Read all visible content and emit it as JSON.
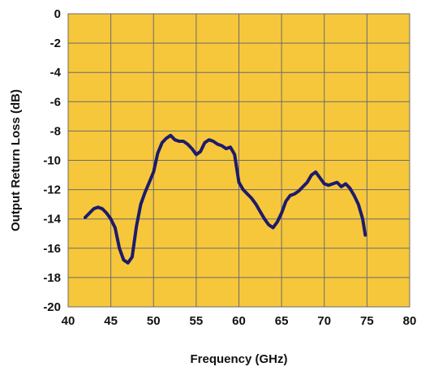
{
  "chart_data": {
    "type": "line",
    "xlabel": "Frequency (GHz)",
    "ylabel": "Output Return Loss (dB)",
    "xlim": [
      40,
      80
    ],
    "ylim": [
      -20,
      0
    ],
    "xticks": [
      "40",
      "45",
      "50",
      "55",
      "60",
      "65",
      "70",
      "75",
      "80"
    ],
    "yticks": [
      "0",
      "-2",
      "-4",
      "-6",
      "-8",
      "-10",
      "-12",
      "-14",
      "-16",
      "-18",
      "-20"
    ],
    "grid": true,
    "legend": "none",
    "colors": {
      "plot_background": "#F6C73B",
      "line": "#1E1B6B",
      "grid": "#6b6b6b"
    },
    "series": [
      {
        "x": [
          42,
          42.5,
          43,
          43.5,
          44,
          44.5,
          45,
          45.5,
          46,
          46.5,
          47,
          47.5,
          48,
          48.5,
          49,
          49.5,
          50,
          50.5,
          51,
          51.5,
          52,
          52.5,
          53,
          53.5,
          54,
          54.5,
          55,
          55.5,
          56,
          56.5,
          57,
          57.5,
          58,
          58.5,
          59,
          59.5,
          60,
          60.5,
          61,
          61.5,
          62,
          62.5,
          63,
          63.5,
          64,
          64.5,
          65,
          65.5,
          66,
          66.5,
          67,
          67.5,
          68,
          68.5,
          69,
          69.5,
          70,
          70.5,
          71,
          71.5,
          72,
          72.5,
          73,
          73.5,
          74,
          74.5,
          74.8
        ],
        "y": [
          -13.9,
          -13.6,
          -13.3,
          -13.2,
          -13.3,
          -13.6,
          -14.0,
          -14.6,
          -16.0,
          -16.8,
          -17.0,
          -16.6,
          -14.5,
          -13.0,
          -12.2,
          -11.5,
          -10.8,
          -9.5,
          -8.8,
          -8.5,
          -8.3,
          -8.6,
          -8.7,
          -8.7,
          -8.9,
          -9.2,
          -9.6,
          -9.4,
          -8.8,
          -8.6,
          -8.7,
          -8.9,
          -9.0,
          -9.2,
          -9.1,
          -9.6,
          -11.5,
          -12.0,
          -12.3,
          -12.6,
          -13.0,
          -13.5,
          -14.0,
          -14.4,
          -14.6,
          -14.2,
          -13.6,
          -12.8,
          -12.4,
          -12.3,
          -12.1,
          -11.8,
          -11.5,
          -11.0,
          -10.8,
          -11.2,
          -11.6,
          -11.7,
          -11.6,
          -11.5,
          -11.8,
          -11.6,
          -11.9,
          -12.4,
          -13.0,
          -14.0,
          -15.1
        ]
      }
    ]
  }
}
